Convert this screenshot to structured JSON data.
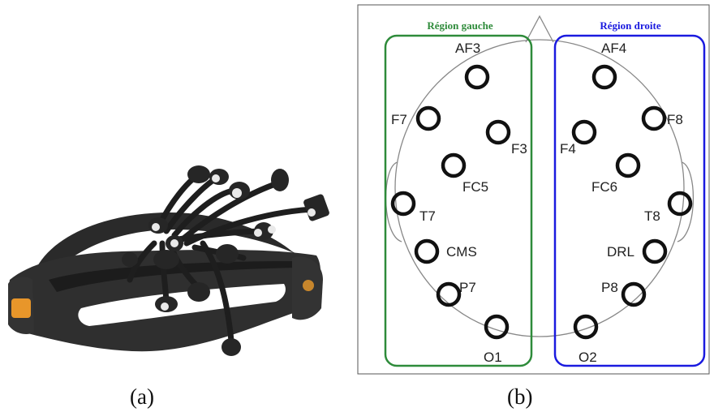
{
  "captions": {
    "a": "(a)",
    "b": "(b)"
  },
  "regions": {
    "left": {
      "title": "Région gauche",
      "color": "#2e8b3a"
    },
    "right": {
      "title": "Région droite",
      "color": "#1a1adf"
    }
  },
  "electrodes": {
    "AF3": "AF3",
    "AF4": "AF4",
    "F7": "F7",
    "F8": "F8",
    "F3": "F3",
    "F4": "F4",
    "FC5": "FC5",
    "FC6": "FC6",
    "T7": "T7",
    "T8": "T8",
    "CMS": "CMS",
    "DRL": "DRL",
    "P7": "P7",
    "P8": "P8",
    "O1": "O1",
    "O2": "O2"
  },
  "headset": {
    "body_color": "#2b2b2b",
    "accent_color": "#e8962a"
  }
}
